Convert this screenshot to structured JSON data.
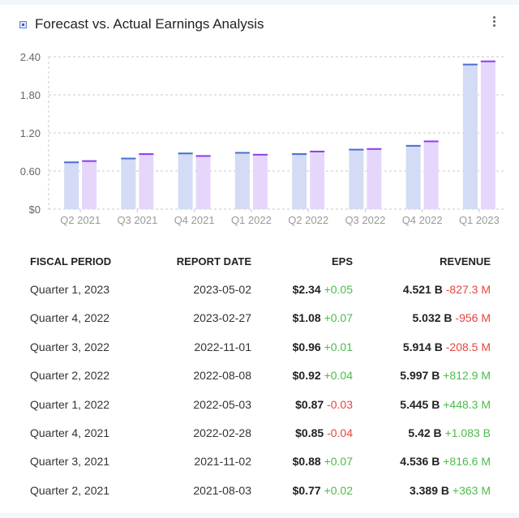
{
  "title": "Forecast vs. Actual Earnings Analysis",
  "icons": {
    "title": "chart-legend-square-icon",
    "menu": "more-vertical-icon"
  },
  "colors": {
    "forecast_fill": "#d3dcf4",
    "forecast_cap": "#4a6fd0",
    "actual_fill": "#e6d6fc",
    "actual_cap": "#8a3ff0",
    "positive": "#4cbb4c",
    "negative": "#e6453c"
  },
  "chart_data": {
    "type": "bar",
    "categories": [
      "Q2 2021",
      "Q3 2021",
      "Q4 2021",
      "Q1 2022",
      "Q2 2022",
      "Q3 2022",
      "Q4 2022",
      "Q1 2023"
    ],
    "series": [
      {
        "key": "forecast",
        "values": [
          0.75,
          0.81,
          0.89,
          0.9,
          0.88,
          0.95,
          1.01,
          2.29
        ]
      },
      {
        "key": "actual",
        "values": [
          0.77,
          0.88,
          0.85,
          0.87,
          0.92,
          0.96,
          1.08,
          2.34
        ]
      }
    ],
    "yticks": [
      0,
      0.6,
      1.2,
      1.8,
      2.4
    ],
    "ytick_labels": [
      "$0",
      "0.60",
      "1.20",
      "1.80",
      "2.40"
    ],
    "ylim": [
      0,
      2.4
    ],
    "grid": true
  },
  "table": {
    "headers": [
      "FISCAL PERIOD",
      "REPORT DATE",
      "EPS",
      "REVENUE"
    ],
    "rows": [
      {
        "period": "Quarter 1, 2023",
        "date": "2023-05-02",
        "eps": "$2.34",
        "eps_diff": "+0.05",
        "eps_sign": "pos",
        "rev": "4.521 B",
        "rev_diff": "-827.3 M",
        "rev_sign": "neg"
      },
      {
        "period": "Quarter 4, 2022",
        "date": "2023-02-27",
        "eps": "$1.08",
        "eps_diff": "+0.07",
        "eps_sign": "pos",
        "rev": "5.032 B",
        "rev_diff": "-956 M",
        "rev_sign": "neg"
      },
      {
        "period": "Quarter 3, 2022",
        "date": "2022-11-01",
        "eps": "$0.96",
        "eps_diff": "+0.01",
        "eps_sign": "pos",
        "rev": "5.914 B",
        "rev_diff": "-208.5 M",
        "rev_sign": "neg"
      },
      {
        "period": "Quarter 2, 2022",
        "date": "2022-08-08",
        "eps": "$0.92",
        "eps_diff": "+0.04",
        "eps_sign": "pos",
        "rev": "5.997 B",
        "rev_diff": "+812.9 M",
        "rev_sign": "pos"
      },
      {
        "period": "Quarter 1, 2022",
        "date": "2022-05-03",
        "eps": "$0.87",
        "eps_diff": "-0.03",
        "eps_sign": "neg",
        "rev": "5.445 B",
        "rev_diff": "+448.3 M",
        "rev_sign": "pos"
      },
      {
        "period": "Quarter 4, 2021",
        "date": "2022-02-28",
        "eps": "$0.85",
        "eps_diff": "-0.04",
        "eps_sign": "neg",
        "rev": "5.42 B",
        "rev_diff": "+1.083 B",
        "rev_sign": "pos"
      },
      {
        "period": "Quarter 3, 2021",
        "date": "2021-11-02",
        "eps": "$0.88",
        "eps_diff": "+0.07",
        "eps_sign": "pos",
        "rev": "4.536 B",
        "rev_diff": "+816.6 M",
        "rev_sign": "pos"
      },
      {
        "period": "Quarter 2, 2021",
        "date": "2021-08-03",
        "eps": "$0.77",
        "eps_diff": "+0.02",
        "eps_sign": "pos",
        "rev": "3.389 B",
        "rev_diff": "+363 M",
        "rev_sign": "pos"
      }
    ]
  }
}
